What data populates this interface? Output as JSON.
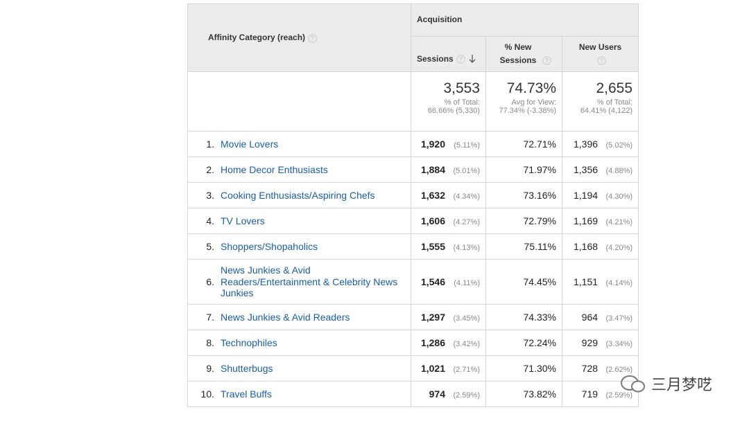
{
  "header": {
    "dimension": "Affinity Category (reach)",
    "group": "Acquisition",
    "columns": [
      "Sessions",
      "% New Sessions",
      "New Users"
    ]
  },
  "totals": [
    {
      "value": "3,553",
      "note": "% of Total:",
      "detail": "66.66% (5,330)"
    },
    {
      "value": "74.73%",
      "note": "Avg for View:",
      "detail": "77.34% (-3.38%)"
    },
    {
      "value": "2,655",
      "note": "% of Total:",
      "detail": "64.41% (4,122)"
    }
  ],
  "rows": [
    [
      "1.",
      "Movie Lovers",
      "1,920",
      "(5.11%)",
      "72.71%",
      "1,396",
      "(5.02%)"
    ],
    [
      "2.",
      "Home Decor Enthusiasts",
      "1,884",
      "(5.01%)",
      "71.97%",
      "1,356",
      "(4.88%)"
    ],
    [
      "3.",
      "Cooking Enthusiasts/Aspiring Chefs",
      "1,632",
      "(4.34%)",
      "73.16%",
      "1,194",
      "(4.30%)"
    ],
    [
      "4.",
      "TV Lovers",
      "1,606",
      "(4.27%)",
      "72.79%",
      "1,169",
      "(4.21%)"
    ],
    [
      "5.",
      "Shoppers/Shopaholics",
      "1,555",
      "(4.13%)",
      "75.11%",
      "1,168",
      "(4.20%)"
    ],
    [
      "6.",
      "News Junkies & Avid Readers/Entertainment & Celebrity News Junkies",
      "1,546",
      "(4.11%)",
      "74.45%",
      "1,151",
      "(4.14%)"
    ],
    [
      "7.",
      "News Junkies & Avid Readers",
      "1,297",
      "(3.45%)",
      "74.33%",
      "964",
      "(3.47%)"
    ],
    [
      "8.",
      "Technophiles",
      "1,286",
      "(3.42%)",
      "72.24%",
      "929",
      "(3.34%)"
    ],
    [
      "9.",
      "Shutterbugs",
      "1,021",
      "(2.71%)",
      "71.30%",
      "728",
      "(2.62%)"
    ],
    [
      "10.",
      "Travel Buffs",
      "974",
      "(2.59%)",
      "73.82%",
      "719",
      "(2.59%)"
    ]
  ],
  "watermark": "三月梦呓"
}
